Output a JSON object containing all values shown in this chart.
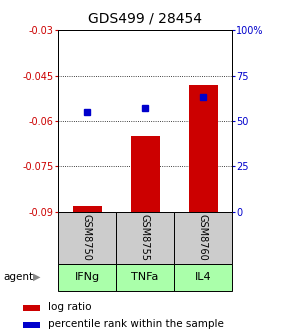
{
  "title": "GDS499 / 28454",
  "categories": [
    "GSM8750",
    "GSM8755",
    "GSM8760"
  ],
  "agent_labels": [
    "IFNg",
    "TNFa",
    "IL4"
  ],
  "log_ratios": [
    -0.088,
    -0.065,
    -0.048
  ],
  "percentile_ranks": [
    55,
    57,
    63
  ],
  "ylim_left": [
    -0.09,
    -0.03
  ],
  "ylim_right": [
    0,
    100
  ],
  "yticks_left": [
    -0.09,
    -0.075,
    -0.06,
    -0.045,
    -0.03
  ],
  "yticks_right": [
    0,
    25,
    50,
    75,
    100
  ],
  "ytick_labels_left": [
    "-0.09",
    "-0.075",
    "-0.06",
    "-0.045",
    "-0.03"
  ],
  "ytick_labels_right": [
    "0",
    "25",
    "50",
    "75",
    "100%"
  ],
  "bar_color": "#cc0000",
  "dot_color": "#0000cc",
  "gsm_bg_color": "#cccccc",
  "agent_bg_color": "#aaffaa",
  "title_fontsize": 10,
  "bar_width": 0.5,
  "bar_baseline": -0.09
}
